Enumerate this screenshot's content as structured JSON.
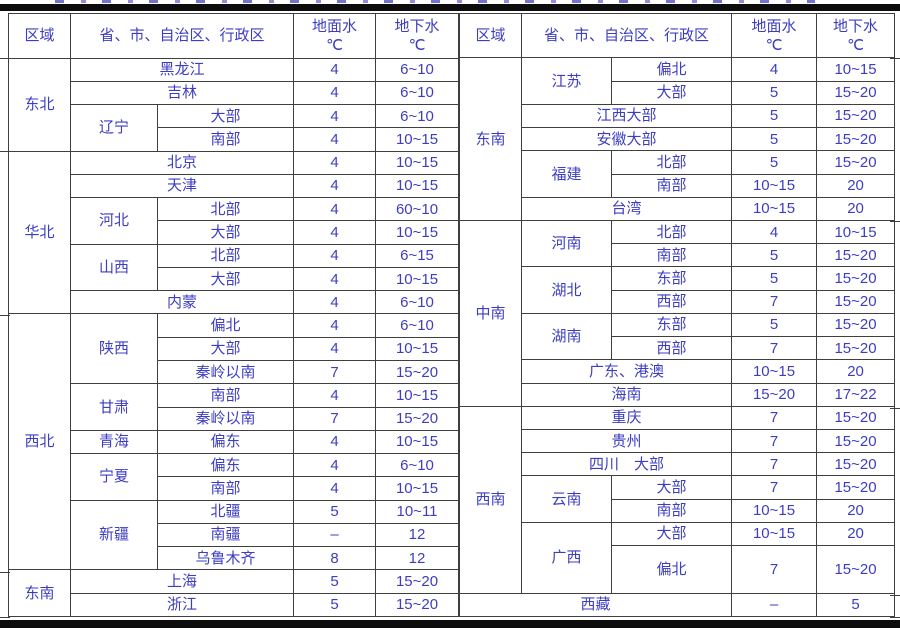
{
  "colors": {
    "text": "#3d3dc2",
    "border": "#3f3f3f",
    "bar": "#0c0c0c"
  },
  "header": {
    "region": "区域",
    "province": "省、市、自治区、行政区",
    "surface_water": "地面水",
    "ground_water": "地下水",
    "unit": "℃"
  },
  "tables": [
    {
      "id": "left",
      "header_cells": [
        {
          "t": "区域"
        },
        {
          "t": "省、市、自治区、行政区",
          "cs": 2
        },
        {
          "t": "地面水",
          "t2": "℃"
        },
        {
          "t": "地下水",
          "t2": "℃"
        }
      ],
      "rows": [
        {
          "cells": [
            {
              "t": "东北",
              "rs": 4
            },
            {
              "t": "黑龙江",
              "cs": 2
            },
            {
              "t": "4"
            },
            {
              "t": "6~10"
            }
          ]
        },
        {
          "cells": [
            {
              "t": "吉林",
              "cs": 2
            },
            {
              "t": "4"
            },
            {
              "t": "6~10"
            }
          ]
        },
        {
          "cells": [
            {
              "t": "辽宁",
              "rs": 2
            },
            {
              "t": "大部"
            },
            {
              "t": "4"
            },
            {
              "t": "6~10"
            }
          ]
        },
        {
          "cells": [
            {
              "t": "南部"
            },
            {
              "t": "4"
            },
            {
              "t": "10~15"
            }
          ]
        },
        {
          "cells": [
            {
              "t": "华北",
              "rs": 7
            },
            {
              "t": "北京",
              "cs": 2
            },
            {
              "t": "4"
            },
            {
              "t": "10~15"
            }
          ]
        },
        {
          "cells": [
            {
              "t": "天津",
              "cs": 2
            },
            {
              "t": "4"
            },
            {
              "t": "10~15"
            }
          ]
        },
        {
          "cells": [
            {
              "t": "河北",
              "rs": 2
            },
            {
              "t": "北部"
            },
            {
              "t": "4"
            },
            {
              "t": "60~10"
            }
          ]
        },
        {
          "cells": [
            {
              "t": "大部"
            },
            {
              "t": "4"
            },
            {
              "t": "10~15"
            }
          ]
        },
        {
          "cells": [
            {
              "t": "山西",
              "rs": 2
            },
            {
              "t": "北部"
            },
            {
              "t": "4"
            },
            {
              "t": "6~15"
            }
          ]
        },
        {
          "cells": [
            {
              "t": "大部"
            },
            {
              "t": "4"
            },
            {
              "t": "10~15"
            }
          ]
        },
        {
          "cells": [
            {
              "t": "内蒙",
              "cs": 2
            },
            {
              "t": "4"
            },
            {
              "t": "6~10"
            }
          ]
        },
        {
          "cells": [
            {
              "t": "西北",
              "rs": 11
            },
            {
              "t": "陕西",
              "rs": 3
            },
            {
              "t": "偏北"
            },
            {
              "t": "4"
            },
            {
              "t": "6~10"
            }
          ]
        },
        {
          "cells": [
            {
              "t": "大部"
            },
            {
              "t": "4"
            },
            {
              "t": "10~15"
            }
          ]
        },
        {
          "cells": [
            {
              "t": "秦岭以南"
            },
            {
              "t": "7"
            },
            {
              "t": "15~20"
            }
          ]
        },
        {
          "cells": [
            {
              "t": "甘肃",
              "rs": 2
            },
            {
              "t": "南部"
            },
            {
              "t": "4"
            },
            {
              "t": "10~15"
            }
          ]
        },
        {
          "cells": [
            {
              "t": "秦岭以南"
            },
            {
              "t": "7"
            },
            {
              "t": "15~20"
            }
          ]
        },
        {
          "cells": [
            {
              "t": "青海"
            },
            {
              "t": "偏东"
            },
            {
              "t": "4"
            },
            {
              "t": "10~15"
            }
          ]
        },
        {
          "cells": [
            {
              "t": "宁夏",
              "rs": 2
            },
            {
              "t": "偏东"
            },
            {
              "t": "4"
            },
            {
              "t": "6~10"
            }
          ]
        },
        {
          "cells": [
            {
              "t": "南部"
            },
            {
              "t": "4"
            },
            {
              "t": "10~15"
            }
          ]
        },
        {
          "cells": [
            {
              "t": "新疆",
              "rs": 3
            },
            {
              "t": "北疆"
            },
            {
              "t": "5"
            },
            {
              "t": "10~11"
            }
          ]
        },
        {
          "cells": [
            {
              "t": "南疆"
            },
            {
              "t": "–"
            },
            {
              "t": "12"
            }
          ]
        },
        {
          "cells": [
            {
              "t": "乌鲁木齐"
            },
            {
              "t": "8"
            },
            {
              "t": "12"
            }
          ]
        },
        {
          "cells": [
            {
              "t": "东南",
              "rs": 2
            },
            {
              "t": "上海",
              "cs": 2
            },
            {
              "t": "5"
            },
            {
              "t": "15~20"
            }
          ]
        },
        {
          "cells": [
            {
              "t": "浙江",
              "cs": 2
            },
            {
              "t": "5"
            },
            {
              "t": "15~20"
            }
          ]
        }
      ]
    },
    {
      "id": "right",
      "header_cells": [
        {
          "t": "区域"
        },
        {
          "t": "省、市、自治区、行政区",
          "cs": 2
        },
        {
          "t": "地面水",
          "t2": "℃"
        },
        {
          "t": "地下水",
          "t2": "℃"
        }
      ],
      "rows": [
        {
          "cells": [
            {
              "t": "东南",
              "rs": 7
            },
            {
              "t": "江苏",
              "rs": 2
            },
            {
              "t": "偏北"
            },
            {
              "t": "4"
            },
            {
              "t": "10~15"
            }
          ]
        },
        {
          "cells": [
            {
              "t": "大部"
            },
            {
              "t": "5"
            },
            {
              "t": "15~20"
            }
          ]
        },
        {
          "cells": [
            {
              "t": "江西大部",
              "cs": 2
            },
            {
              "t": "5"
            },
            {
              "t": "15~20"
            }
          ]
        },
        {
          "cells": [
            {
              "t": "安徽大部",
              "cs": 2
            },
            {
              "t": "5"
            },
            {
              "t": "15~20"
            }
          ]
        },
        {
          "cells": [
            {
              "t": "福建",
              "rs": 2
            },
            {
              "t": "北部"
            },
            {
              "t": "5"
            },
            {
              "t": "15~20"
            }
          ]
        },
        {
          "cells": [
            {
              "t": "南部"
            },
            {
              "t": "10~15"
            },
            {
              "t": "20"
            }
          ]
        },
        {
          "cells": [
            {
              "t": "台湾",
              "cs": 2
            },
            {
              "t": "10~15"
            },
            {
              "t": "20"
            }
          ]
        },
        {
          "cells": [
            {
              "t": "中南",
              "rs": 8
            },
            {
              "t": "河南",
              "rs": 2
            },
            {
              "t": "北部"
            },
            {
              "t": "4"
            },
            {
              "t": "10~15"
            }
          ]
        },
        {
          "cells": [
            {
              "t": "南部"
            },
            {
              "t": "5"
            },
            {
              "t": "15~20"
            }
          ]
        },
        {
          "cells": [
            {
              "t": "湖北",
              "rs": 2
            },
            {
              "t": "东部"
            },
            {
              "t": "5"
            },
            {
              "t": "15~20"
            }
          ]
        },
        {
          "cells": [
            {
              "t": "西部"
            },
            {
              "t": "7"
            },
            {
              "t": "15~20"
            }
          ]
        },
        {
          "cells": [
            {
              "t": "湖南",
              "rs": 2
            },
            {
              "t": "东部"
            },
            {
              "t": "5"
            },
            {
              "t": "15~20"
            }
          ]
        },
        {
          "cells": [
            {
              "t": "西部"
            },
            {
              "t": "7"
            },
            {
              "t": "15~20"
            }
          ]
        },
        {
          "cells": [
            {
              "t": "广东、港澳",
              "cs": 2
            },
            {
              "t": "10~15"
            },
            {
              "t": "20"
            }
          ]
        },
        {
          "cells": [
            {
              "t": "海南",
              "cs": 2
            },
            {
              "t": "15~20"
            },
            {
              "t": "17~22"
            }
          ]
        },
        {
          "cells": [
            {
              "t": "西南",
              "rs": 7
            },
            {
              "t": "重庆",
              "cs": 2
            },
            {
              "t": "7"
            },
            {
              "t": "15~20"
            }
          ]
        },
        {
          "cells": [
            {
              "t": "贵州",
              "cs": 2
            },
            {
              "t": "7"
            },
            {
              "t": "15~20"
            }
          ]
        },
        {
          "cells": [
            {
              "t": "四川　大部",
              "cs": 2
            },
            {
              "t": "7"
            },
            {
              "t": "15~20"
            }
          ]
        },
        {
          "cells": [
            {
              "t": "云南",
              "rs": 2
            },
            {
              "t": "大部"
            },
            {
              "t": "7"
            },
            {
              "t": "15~20"
            }
          ]
        },
        {
          "cells": [
            {
              "t": "南部"
            },
            {
              "t": "10~15"
            },
            {
              "t": "20"
            }
          ]
        },
        {
          "cells": [
            {
              "t": "广西",
              "rs": 2
            },
            {
              "t": "大部"
            },
            {
              "t": "10~15"
            },
            {
              "t": "20"
            }
          ]
        },
        {
          "h": 2,
          "cells": [
            {
              "t": "偏北"
            },
            {
              "t": "7"
            },
            {
              "t": "15~20"
            }
          ]
        },
        {
          "cells": [
            {
              "t": "西藏",
              "cs": 3
            },
            {
              "t": "–"
            },
            {
              "t": "5"
            }
          ]
        }
      ]
    }
  ]
}
